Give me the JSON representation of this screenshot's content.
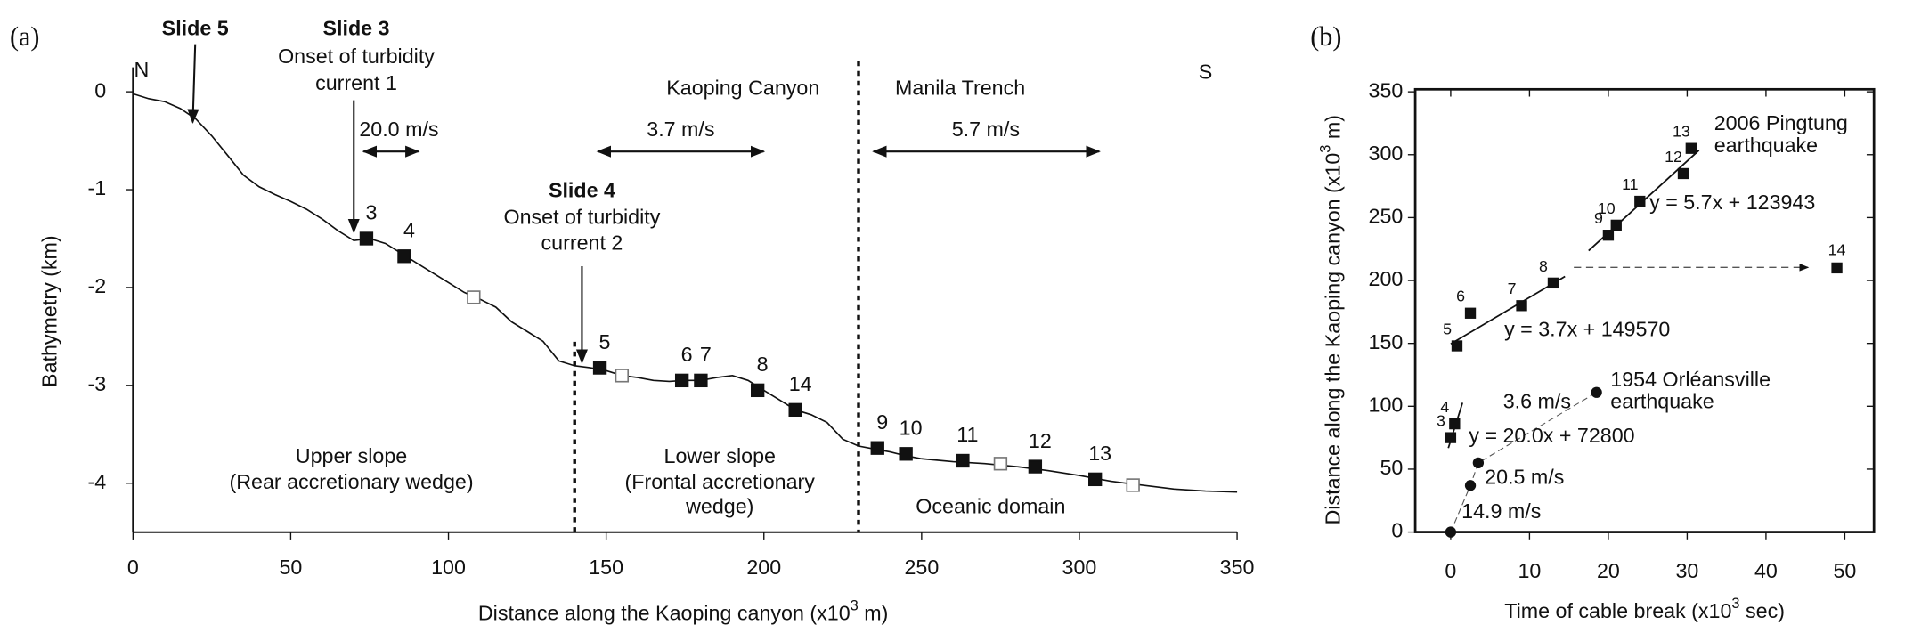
{
  "chart_data": [
    {
      "type": "line",
      "panel_label": "(a)",
      "x_label": [
        "Distance along the Kaoping canyon (x10",
        "3",
        " m)"
      ],
      "y_label": "Bathymetry (km)",
      "xlim": [
        0,
        350
      ],
      "ylim": [
        -4.5,
        0.25
      ],
      "xticks": [
        0,
        50,
        100,
        150,
        200,
        250,
        300,
        350
      ],
      "yticks": [
        0,
        -1,
        -2,
        -3,
        -4
      ],
      "x": [
        0,
        5,
        10,
        15,
        20,
        25,
        30,
        35,
        40,
        45,
        50,
        55,
        60,
        65,
        70,
        75,
        80,
        85,
        90,
        95,
        100,
        105,
        110,
        115,
        120,
        125,
        130,
        135,
        140,
        145,
        150,
        155,
        160,
        165,
        170,
        175,
        180,
        185,
        190,
        195,
        200,
        205,
        210,
        215,
        220,
        225,
        230,
        235,
        240,
        245,
        250,
        260,
        270,
        280,
        290,
        300,
        310,
        320,
        330,
        340,
        350
      ],
      "values": [
        -0.02,
        -0.07,
        -0.1,
        -0.17,
        -0.28,
        -0.45,
        -0.65,
        -0.85,
        -0.97,
        -1.05,
        -1.12,
        -1.2,
        -1.3,
        -1.42,
        -1.52,
        -1.5,
        -1.55,
        -1.65,
        -1.75,
        -1.85,
        -1.95,
        -2.05,
        -2.12,
        -2.2,
        -2.35,
        -2.45,
        -2.55,
        -2.75,
        -2.8,
        -2.82,
        -2.85,
        -2.9,
        -2.92,
        -2.95,
        -2.96,
        -2.95,
        -2.95,
        -2.92,
        -2.9,
        -2.95,
        -3.05,
        -3.15,
        -3.25,
        -3.3,
        -3.38,
        -3.55,
        -3.62,
        -3.65,
        -3.68,
        -3.72,
        -3.75,
        -3.78,
        -3.8,
        -3.83,
        -3.87,
        -3.92,
        -3.98,
        -4.02,
        -4.06,
        -4.08,
        -4.09
      ],
      "color": "#111111",
      "markers": [
        {
          "style": "filled",
          "x": [
            74,
            86,
            148,
            174,
            180,
            198,
            210,
            236,
            245,
            263,
            286,
            305
          ],
          "values": [
            -1.5,
            -1.68,
            -2.82,
            -2.95,
            -2.95,
            -3.05,
            -3.25,
            -3.64,
            -3.7,
            -3.77,
            -3.83,
            -3.96
          ],
          "labels": [
            "3",
            "4",
            "5",
            "6",
            "7",
            "8",
            "14",
            "9",
            "10",
            "11",
            "12",
            "13"
          ]
        },
        {
          "style": "open",
          "x": [
            108,
            155,
            275,
            317
          ],
          "values": [
            -2.1,
            -2.9,
            -3.8,
            -4.02
          ]
        }
      ],
      "boundaries": [
        140,
        230
      ],
      "annotations": [
        {
          "text": "N"
        },
        {
          "text": "S"
        },
        {
          "text": "Slide 5",
          "bold": true
        },
        {
          "text": "Slide 3",
          "bold": true
        },
        {
          "text": "Onset of turbidity"
        },
        {
          "text": "current 1"
        },
        {
          "text": "Slide 4",
          "bold": true
        },
        {
          "text": "Onset of turbidity"
        },
        {
          "text": "current 2"
        },
        {
          "text": "Kaoping Canyon"
        },
        {
          "text": "Manila Trench"
        },
        {
          "text": "20.0 m/s"
        },
        {
          "text": "3.7 m/s"
        },
        {
          "text": "5.7 m/s"
        },
        {
          "text": "Upper slope"
        },
        {
          "text": "(Rear accretionary wedge)"
        },
        {
          "text": "Lower slope"
        },
        {
          "text": "(Frontal accretionary"
        },
        {
          "text": "wedge)"
        },
        {
          "text": "Oceanic domain"
        }
      ]
    },
    {
      "type": "scatter",
      "panel_label": "(b)",
      "x_label": [
        "Time of cable break (x10",
        "3",
        " sec)"
      ],
      "y_label": [
        "Distance along the Kaoping canyon (x10",
        "3",
        " m)"
      ],
      "xlim": [
        -4.5,
        53.7
      ],
      "ylim": [
        0,
        352
      ],
      "xticks": [
        0,
        10,
        20,
        30,
        40,
        50
      ],
      "yticks": [
        0,
        50,
        100,
        150,
        200,
        250,
        300,
        350
      ],
      "squares": {
        "x": [
          0,
          0.5,
          0.8,
          2.5,
          9,
          13,
          20,
          21,
          24,
          29.5,
          30.5,
          49
        ],
        "values": [
          75,
          86,
          148,
          174,
          180,
          198,
          236,
          244,
          263,
          285,
          305,
          210
        ],
        "labels": [
          "3",
          "4",
          "5",
          "6",
          "7",
          "8",
          "9",
          "10",
          "11",
          "12",
          "13",
          "14"
        ]
      },
      "circles": {
        "x": [
          0,
          2.5,
          3.5,
          18.5
        ],
        "values": [
          0,
          37,
          55,
          111
        ]
      },
      "fits": [
        {
          "label": "y = 20.0x + 72800",
          "slope": 20.0,
          "intercept": 72.8,
          "x_range": [
            -0.3,
            1.5
          ]
        },
        {
          "label": "y = 3.7x + 149570",
          "slope": 3.7,
          "intercept": 149.57,
          "x_range": [
            0,
            14.5
          ]
        },
        {
          "label": "y = 5.7x + 123943",
          "slope": 5.7,
          "intercept": 123.943,
          "x_range": [
            17.5,
            31.5
          ]
        }
      ],
      "annotations": [
        {
          "text": "2006 Pingtung"
        },
        {
          "text": "earthquake"
        },
        {
          "text": "1954 Orléansville"
        },
        {
          "text": "earthquake"
        },
        {
          "text": "3.6 m/s"
        },
        {
          "text": "20.5 m/s"
        },
        {
          "text": "14.9 m/s"
        }
      ]
    }
  ]
}
